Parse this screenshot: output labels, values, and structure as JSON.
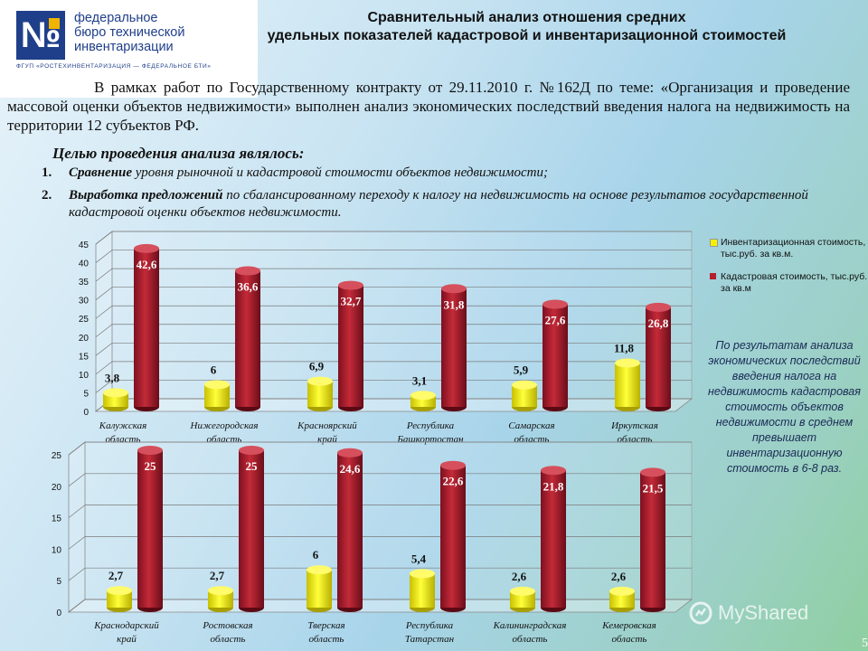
{
  "logo": {
    "mark": "№",
    "name_line1": "федеральное",
    "name_line2": "бюро технической",
    "name_line3": "инвентаризации",
    "subtitle": "ФГУП «РОСТЕХИНВЕНТАРИЗАЦИЯ — ФЕДЕРАЛЬНОЕ БТИ»",
    "brand_color": "#1f3f8a",
    "accent_color": "#f0b400"
  },
  "title": {
    "line1": "Сравнительный анализ отношения средних",
    "line2": "удельных показателей кадастровой и инвентаризационной стоимостей"
  },
  "intro": "В рамках работ по Государственному контракту от 29.11.2010 г. №162Д по теме: «Организация и проведение массовой оценки объектов недвижимости» выполнен анализ экономических последствий введения налога на недвижимость на территории 12 субъектов РФ.",
  "goals": {
    "heading": "Целью проведения анализа являлось:",
    "items": [
      {
        "num": "1.",
        "bold": "Сравнение",
        "rest": " уровня рыночной и кадастровой стоимости объектов недвижимости;"
      },
      {
        "num": "2.",
        "bold": "Выработка предложений",
        "rest": " по сбалансированному переходу к налогу на недвижимость на основе результатов государственной кадастровой оценки объектов недвижимости."
      }
    ]
  },
  "legend": {
    "inv": "Инвентаризационная стоимость, тыс.руб. за кв.м.",
    "cad": "Кадастровая стоимость, тыс.руб. за кв.м"
  },
  "note": "По результатам анализа экономических последствий введения налога на недвижимость кадастровая стоимость объектов недвижимости в среднем превышает инвентаризационную стоимость в 6-8 раз.",
  "watermark": "MyShared",
  "page_number": "5",
  "chart_data": [
    {
      "type": "bar",
      "categories": [
        [
          "Калужская",
          "область"
        ],
        [
          "Нижегородская",
          "область"
        ],
        [
          "Красноярский",
          "край"
        ],
        [
          "Республика",
          "Башкортостан"
        ],
        [
          "Самарская",
          "область"
        ],
        [
          "Иркутская",
          "область"
        ]
      ],
      "series": [
        {
          "name": "Инвентаризационная стоимость, тыс.руб. за кв.м.",
          "values": [
            3.8,
            6,
            6.9,
            3.1,
            5.9,
            11.8
          ],
          "labels": [
            "3,8",
            "6",
            "6,9",
            "3,1",
            "5,9",
            "11,8"
          ],
          "color": "#f5f000"
        },
        {
          "name": "Кадастровая стоимость, тыс.руб. за кв.м",
          "values": [
            42.6,
            36.6,
            32.7,
            31.8,
            27.6,
            26.8
          ],
          "labels": [
            "42,6",
            "36,6",
            "32,7",
            "31,8",
            "27,6",
            "26,8"
          ],
          "color": "#b3202e"
        }
      ],
      "ylim": [
        0,
        45
      ],
      "yticks": [
        0,
        5,
        10,
        15,
        20,
        25,
        30,
        35,
        40,
        45
      ],
      "grid": true,
      "legend": "right"
    },
    {
      "type": "bar",
      "categories": [
        [
          "Краснодарский",
          "край"
        ],
        [
          "Ростовская",
          "область"
        ],
        [
          "Тверская",
          "область"
        ],
        [
          "Республика",
          "Татарстан"
        ],
        [
          "Калининградская",
          "область"
        ],
        [
          "Кемеровская",
          "область"
        ]
      ],
      "series": [
        {
          "name": "Инвентаризационная стоимость, тыс.руб. за кв.м.",
          "values": [
            2.7,
            2.7,
            6,
            5.4,
            2.6,
            2.6
          ],
          "labels": [
            "2,7",
            "2,7",
            "6",
            "5,4",
            "2,6",
            "2,6"
          ],
          "color": "#f5f000"
        },
        {
          "name": "Кадастровая стоимость, тыс.руб. за кв.м",
          "values": [
            25,
            25,
            24.6,
            22.6,
            21.8,
            21.5
          ],
          "labels": [
            "25",
            "25",
            "24,6",
            "22,6",
            "21,8",
            "21,5"
          ],
          "color": "#b3202e"
        }
      ],
      "ylim": [
        0,
        25
      ],
      "yticks": [
        0,
        5,
        10,
        15,
        20,
        25
      ],
      "grid": true
    }
  ]
}
